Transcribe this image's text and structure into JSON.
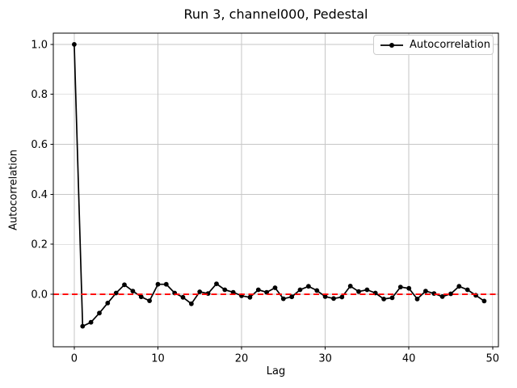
{
  "chart_data": {
    "type": "line",
    "title": "Run 3, channel000, Pedestal",
    "xlabel": "Lag",
    "ylabel": "Autocorrelation",
    "grid": true,
    "xlim": [
      -2.5,
      50.7
    ],
    "ylim": [
      -0.21,
      1.045
    ],
    "xticks": [
      0,
      10,
      20,
      30,
      40,
      50
    ],
    "xtick_labels": [
      "0",
      "10",
      "20",
      "30",
      "40",
      "50"
    ],
    "yticks": [
      0.0,
      0.2,
      0.4,
      0.6,
      0.8,
      1.0
    ],
    "ytick_labels": [
      "0.0",
      "0.2",
      "0.4",
      "0.6",
      "0.8",
      "1.0"
    ],
    "legend": {
      "position": "upper-right",
      "entries": [
        {
          "label": "Autocorrelation",
          "marker": "circle",
          "color": "#000000"
        }
      ]
    },
    "reference_lines": [
      {
        "axis": "y",
        "value": 0.0,
        "color": "#ff0000",
        "style": "dashed"
      }
    ],
    "series": [
      {
        "name": "Autocorrelation",
        "color": "#000000",
        "marker": "o",
        "x": [
          0,
          1,
          2,
          3,
          4,
          5,
          6,
          7,
          8,
          9,
          10,
          11,
          12,
          13,
          14,
          15,
          16,
          17,
          18,
          19,
          20,
          21,
          22,
          23,
          24,
          25,
          26,
          27,
          28,
          29,
          30,
          31,
          32,
          33,
          34,
          35,
          36,
          37,
          38,
          39,
          40,
          41,
          42,
          43,
          44,
          45,
          46,
          47,
          48,
          49
        ],
        "values": [
          1.0,
          -0.128,
          -0.112,
          -0.075,
          -0.035,
          0.005,
          0.038,
          0.013,
          -0.01,
          -0.026,
          0.04,
          0.04,
          0.005,
          -0.012,
          -0.038,
          0.01,
          0.003,
          0.042,
          0.018,
          0.008,
          -0.006,
          -0.012,
          0.018,
          0.008,
          0.026,
          -0.018,
          -0.01,
          0.018,
          0.032,
          0.015,
          -0.009,
          -0.017,
          -0.011,
          0.033,
          0.011,
          0.018,
          0.005,
          -0.019,
          -0.014,
          0.029,
          0.024,
          -0.019,
          0.013,
          0.003,
          -0.009,
          0.002,
          0.032,
          0.018,
          -0.004,
          -0.027
        ]
      }
    ],
    "colors": {
      "line": "#000000",
      "zero_line": "#ff0000",
      "grid": "#c6c6c6",
      "spine": "#000000",
      "background": "#ffffff",
      "legend_border": "#cccccc"
    }
  }
}
